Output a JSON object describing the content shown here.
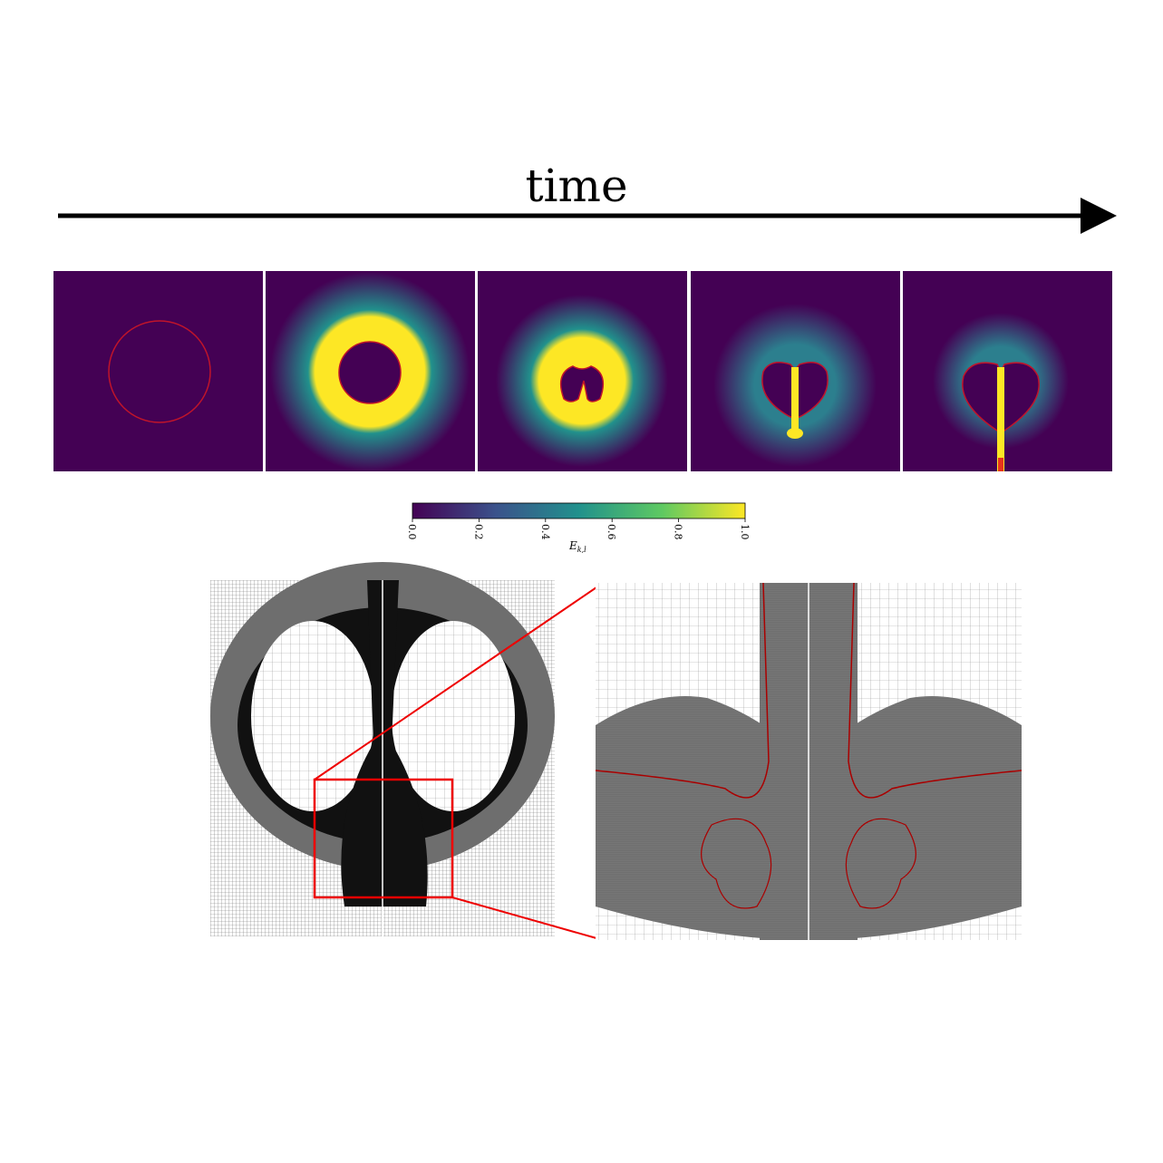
{
  "arrow_label": "time",
  "colorbar": {
    "label": "E",
    "label_subscript": "k,l",
    "range": [
      0,
      1
    ],
    "ticks": [
      {
        "value": 0,
        "label": "0.0"
      },
      {
        "value": 0.2,
        "label": "0.2"
      },
      {
        "value": 0.4,
        "label": "0.4"
      },
      {
        "value": 0.6,
        "label": "0.6"
      },
      {
        "value": 0.8,
        "label": "0.8"
      },
      {
        "value": 1,
        "label": "1.0"
      }
    ],
    "colors": [
      "#440154",
      "#3b528b",
      "#21918c",
      "#5ec962",
      "#fde725"
    ]
  }
}
